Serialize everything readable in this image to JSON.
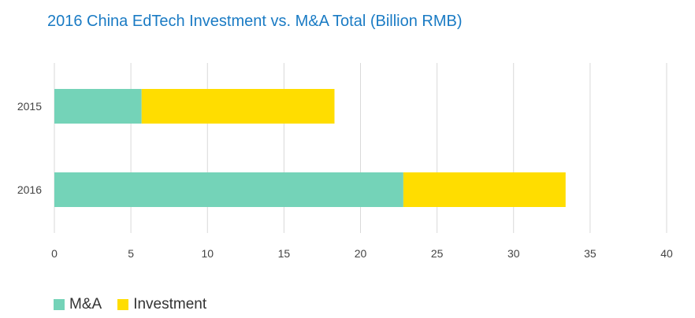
{
  "chart_data": {
    "type": "bar",
    "orientation": "horizontal",
    "stacked": true,
    "title": "2016 China EdTech Investment vs. M&A Total (Billion RMB)",
    "categories": [
      "2015",
      "2016"
    ],
    "series": [
      {
        "name": "M&A",
        "values": [
          5.7,
          22.8
        ],
        "color": "#74d3b8"
      },
      {
        "name": "Investment",
        "values": [
          12.6,
          10.6
        ],
        "color": "#ffdd00"
      }
    ],
    "xlim": [
      0,
      40
    ],
    "xticks": [
      "0",
      "5",
      "10",
      "15",
      "20",
      "25",
      "30",
      "35",
      "40"
    ],
    "grid": true,
    "legend_position": "bottom-left"
  }
}
